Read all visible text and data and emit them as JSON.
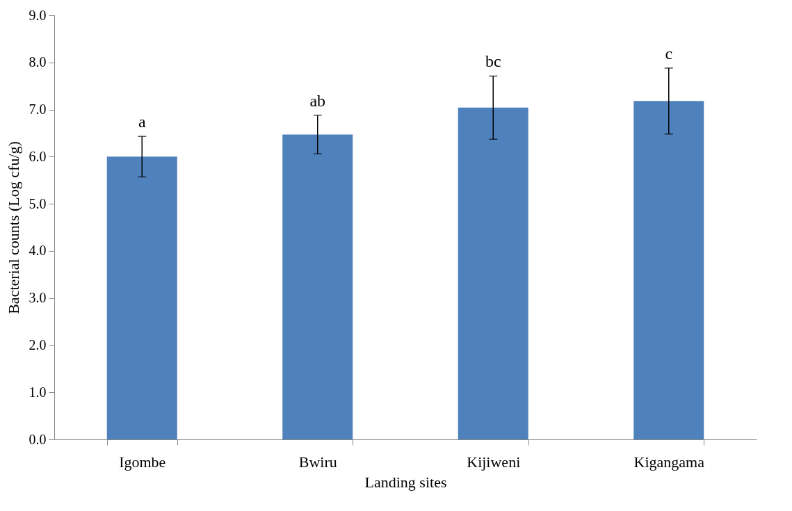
{
  "chart_data": {
    "type": "bar",
    "xlabel": "Landing sites",
    "ylabel": "Bacterial counts (Log cfu/g)",
    "categories": [
      "Igombe",
      "Bwiru",
      "Kijiweni",
      "Kigangama"
    ],
    "values": [
      6.0,
      6.47,
      7.04,
      7.18
    ],
    "errors": [
      0.43,
      0.41,
      0.67,
      0.7
    ],
    "color": "#4f81bd",
    "ylim": [
      0,
      9
    ],
    "yticks": [
      {
        "value": 0,
        "label": "0.0"
      },
      {
        "value": 1,
        "label": "1.0"
      },
      {
        "value": 2,
        "label": "2.0"
      },
      {
        "value": 3,
        "label": "3.0"
      },
      {
        "value": 4,
        "label": "4.0"
      },
      {
        "value": 5,
        "label": "5.0"
      },
      {
        "value": 6,
        "label": "6.0"
      },
      {
        "value": 7,
        "label": "7.0"
      },
      {
        "value": 8,
        "label": "8.0"
      },
      {
        "value": 9,
        "label": "9.0"
      }
    ],
    "annotations": [
      {
        "text": "a",
        "x": "Igombe",
        "y": 6.43
      },
      {
        "text": "ab",
        "x": "Bwiru",
        "y": 6.88
      },
      {
        "text": "bc",
        "x": "Kijiweni",
        "y": 7.71
      },
      {
        "text": "c",
        "x": "Kigangama",
        "y": 7.88
      }
    ],
    "grid": false
  }
}
